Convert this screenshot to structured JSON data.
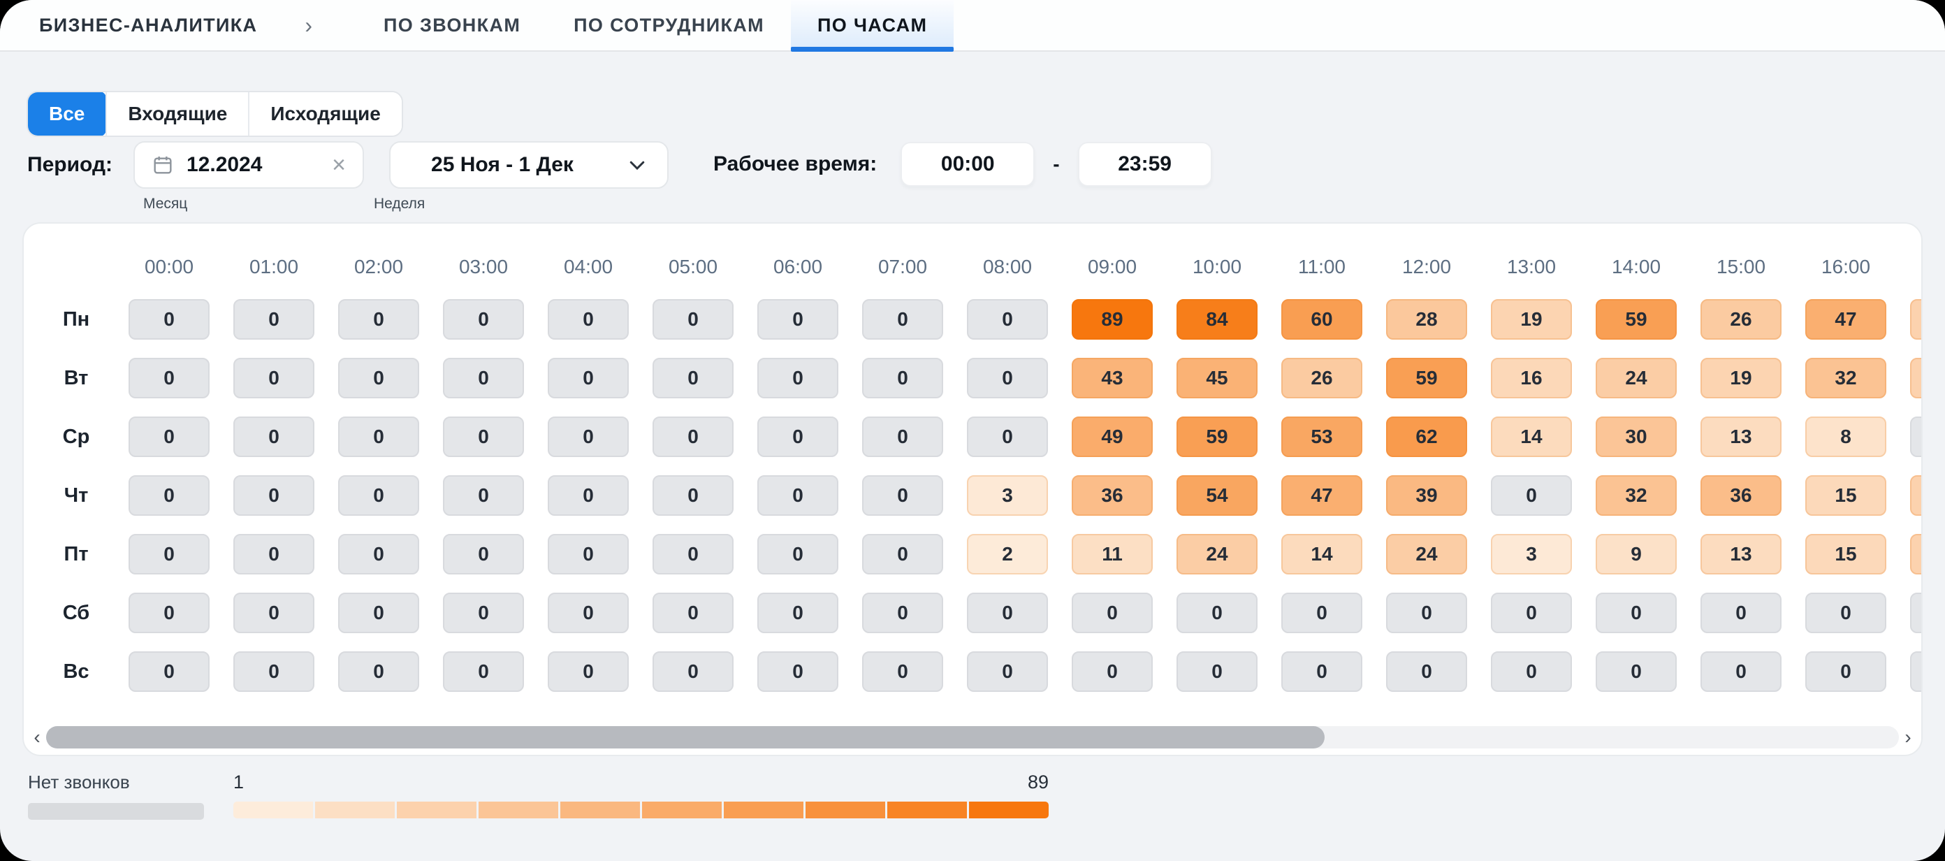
{
  "nav": {
    "breadcrumb": "БИЗНЕС-АНАЛИТИКА",
    "tabs": [
      {
        "label": "ПО ЗВОНКАМ",
        "active": false
      },
      {
        "label": "ПО СОТРУДНИКАМ",
        "active": false
      },
      {
        "label": "ПО ЧАСАМ",
        "active": true
      }
    ]
  },
  "filters": {
    "options": [
      {
        "label": "Все",
        "active": true
      },
      {
        "label": "Входящие",
        "active": false
      },
      {
        "label": "Исходящие",
        "active": false
      }
    ]
  },
  "period": {
    "label": "Период:",
    "month": {
      "value": "12.2024",
      "caption": "Месяц"
    },
    "week": {
      "value": "25 Ноя - 1 Дек",
      "caption": "Неделя"
    }
  },
  "work_time": {
    "label": "Рабочее время:",
    "from": "00:00",
    "separator": "-",
    "to": "23:59"
  },
  "chart_data": {
    "type": "heatmap",
    "hours": [
      "00:00",
      "01:00",
      "02:00",
      "03:00",
      "04:00",
      "05:00",
      "06:00",
      "07:00",
      "08:00",
      "09:00",
      "10:00",
      "11:00",
      "12:00",
      "13:00",
      "14:00",
      "15:00",
      "16:00"
    ],
    "days": [
      "Пн",
      "Вт",
      "Ср",
      "Чт",
      "Пт",
      "Сб",
      "Вс"
    ],
    "values": [
      [
        0,
        0,
        0,
        0,
        0,
        0,
        0,
        0,
        0,
        89,
        84,
        60,
        28,
        19,
        59,
        26,
        47
      ],
      [
        0,
        0,
        0,
        0,
        0,
        0,
        0,
        0,
        0,
        43,
        45,
        26,
        59,
        16,
        24,
        19,
        32
      ],
      [
        0,
        0,
        0,
        0,
        0,
        0,
        0,
        0,
        0,
        49,
        59,
        53,
        62,
        14,
        30,
        13,
        8
      ],
      [
        0,
        0,
        0,
        0,
        0,
        0,
        0,
        0,
        3,
        36,
        54,
        47,
        39,
        0,
        32,
        36,
        15
      ],
      [
        0,
        0,
        0,
        0,
        0,
        0,
        0,
        0,
        2,
        11,
        24,
        14,
        24,
        3,
        9,
        13,
        15
      ],
      [
        0,
        0,
        0,
        0,
        0,
        0,
        0,
        0,
        0,
        0,
        0,
        0,
        0,
        0,
        0,
        0,
        0
      ],
      [
        0,
        0,
        0,
        0,
        0,
        0,
        0,
        0,
        0,
        0,
        0,
        0,
        0,
        0,
        0,
        0,
        0
      ]
    ],
    "min": 0,
    "max": 89,
    "next_column_partial": [
      "low",
      "low",
      "zero",
      "low",
      "low",
      "zero",
      "zero"
    ]
  },
  "legend": {
    "no_calls_label": "Нет звонков",
    "min_label": "1",
    "max_label": "89",
    "segments": 10
  },
  "colors": {
    "accent_blue": "#1b80e8",
    "tab_underline": "#2078e2",
    "heat_low": "#fdecdb",
    "heat_high": "#f7770e",
    "zero_cell_bg": "#e4e6e9",
    "zero_cell_border": "#d8dade",
    "no_calls_bar": "#d9dbde"
  }
}
